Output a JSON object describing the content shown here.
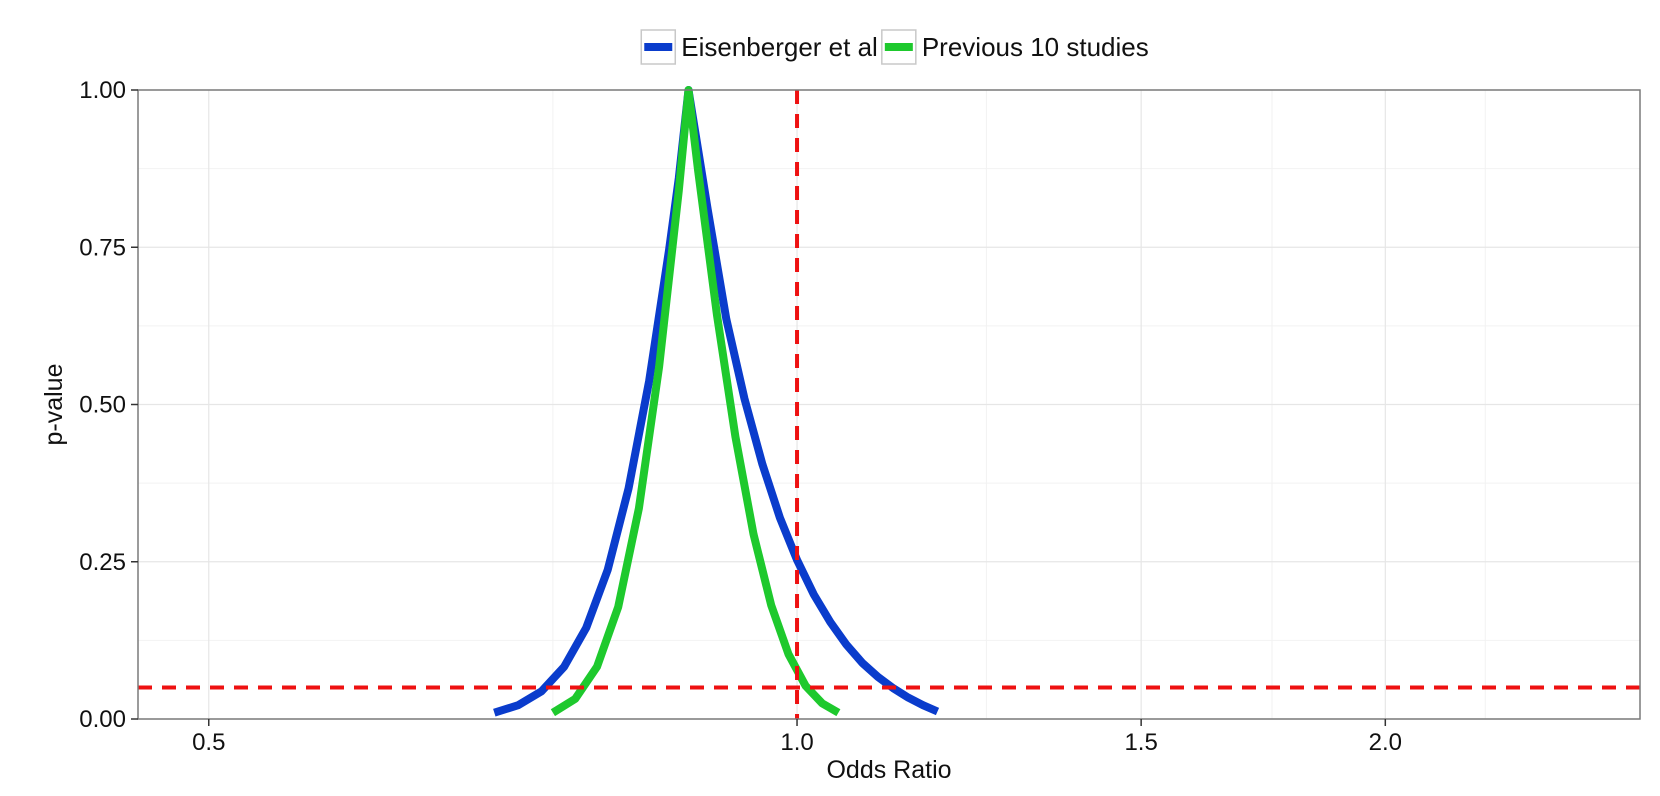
{
  "chart_data": {
    "type": "line",
    "xlabel": "Odds Ratio",
    "ylabel": "p-value",
    "x_scale": "log",
    "xlim": [
      0.46,
      2.7
    ],
    "ylim": [
      0,
      1
    ],
    "x_ticks": [
      0.5,
      1.0,
      1.5,
      2.0
    ],
    "x_tick_labels": [
      "0.5",
      "1.0",
      "1.5",
      "2.0"
    ],
    "y_ticks": [
      0,
      0.25,
      0.5,
      0.75,
      1.0
    ],
    "y_tick_labels": [
      "0.00",
      "0.25",
      "0.50",
      "0.75",
      "1.00"
    ],
    "grid": true,
    "legend_position": "top",
    "series": [
      {
        "name": "Eisenberger et al",
        "color": "#0a3ccc",
        "x": [
          0.7,
          0.72,
          0.74,
          0.76,
          0.78,
          0.8,
          0.82,
          0.84,
          0.86,
          0.87,
          0.88,
          0.9,
          0.92,
          0.94,
          0.96,
          0.98,
          1.0,
          1.02,
          1.04,
          1.06,
          1.08,
          1.1,
          1.12,
          1.14,
          1.16,
          1.18
        ],
        "y": [
          0.01,
          0.022,
          0.044,
          0.083,
          0.145,
          0.237,
          0.367,
          0.537,
          0.745,
          0.86,
          1.0,
          0.811,
          0.636,
          0.509,
          0.405,
          0.32,
          0.253,
          0.198,
          0.154,
          0.118,
          0.089,
          0.067,
          0.049,
          0.034,
          0.022,
          0.012
        ]
      },
      {
        "name": "Previous 10 studies",
        "color": "#1ec92d",
        "x": [
          0.75,
          0.77,
          0.79,
          0.81,
          0.83,
          0.85,
          0.87,
          0.88,
          0.89,
          0.91,
          0.93,
          0.95,
          0.97,
          0.99,
          1.01,
          1.03,
          1.05
        ],
        "y": [
          0.01,
          0.032,
          0.083,
          0.178,
          0.335,
          0.56,
          0.84,
          1.0,
          0.872,
          0.642,
          0.449,
          0.294,
          0.181,
          0.103,
          0.053,
          0.025,
          0.01
        ]
      }
    ],
    "reference_lines": {
      "vertical": {
        "x": 1.0,
        "color": "#ee1111",
        "style": "dashed"
      },
      "horizontal": {
        "y": 0.05,
        "color": "#ee1111",
        "style": "dashed"
      }
    }
  }
}
